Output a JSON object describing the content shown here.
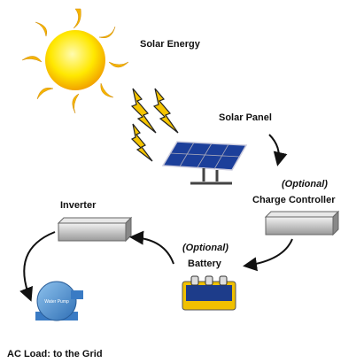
{
  "nodes": [
    {
      "label": "Solar Energy"
    },
    {
      "label": "Solar Panel"
    },
    {
      "note": "(Optional)",
      "label": "Charge Controller"
    },
    {
      "label": "Inverter"
    },
    {
      "note": "(Optional)",
      "label": "Battery"
    },
    {
      "label": "Water Pump"
    },
    {
      "label": "AC Load: to the Grid"
    }
  ]
}
